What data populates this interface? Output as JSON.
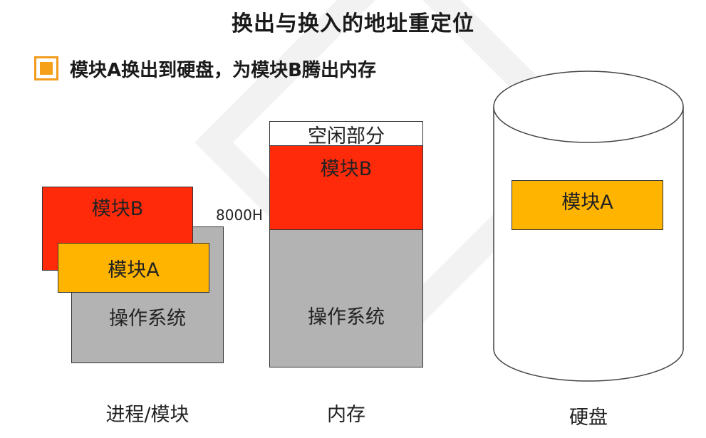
{
  "title": "换出与换入的地址重定位",
  "bullet": {
    "text": "模块A换出到硬盘，为模块B腾出内存",
    "color": "#f6a01a"
  },
  "process": {
    "module_b": "模块B",
    "module_a": "模块A",
    "os": "操作系统",
    "caption": "进程/模块"
  },
  "memory": {
    "free": "空闲部分",
    "module_b": "模块B",
    "os": "操作系统",
    "address": "8000H",
    "caption": "内存"
  },
  "disk": {
    "module_a": "模块A",
    "caption": "硬盘"
  },
  "colors": {
    "module_b": "#ff2a0a",
    "module_a": "#ffb400",
    "os": "#b3b3b3"
  }
}
